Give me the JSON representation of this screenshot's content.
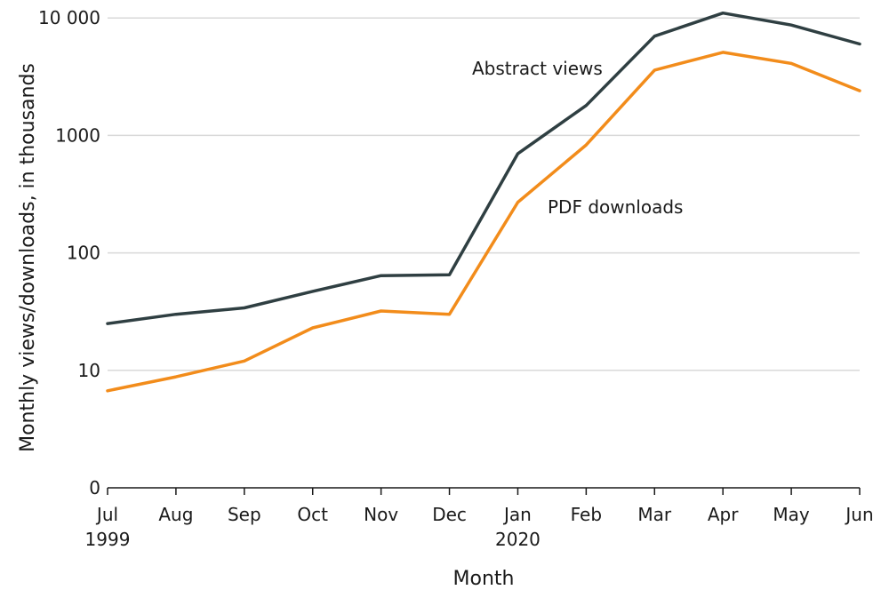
{
  "chart_data": {
    "type": "line",
    "xlabel": "Month",
    "ylabel": "Monthly views/downloads, in thousands",
    "y_scale": "log",
    "grid": true,
    "legend": "inline labels",
    "categories": [
      "Jul",
      "Aug",
      "Sep",
      "Oct",
      "Nov",
      "Dec",
      "Jan",
      "Feb",
      "Mar",
      "Apr",
      "May",
      "Jun"
    ],
    "year_labels": [
      "1999",
      "",
      "",
      "",
      "",
      "",
      "2020",
      "",
      "",
      "",
      "",
      ""
    ],
    "y_ticks": [
      0,
      10,
      100,
      1000,
      10000
    ],
    "y_tick_labels": [
      "0",
      "10",
      "100",
      "1000",
      "10 000"
    ],
    "series": [
      {
        "name": "Abstract views",
        "color": "#2f3f42",
        "values": [
          25,
          30,
          34,
          47,
          64,
          65,
          700,
          1800,
          7000,
          11000,
          8700,
          6000
        ]
      },
      {
        "name": "PDF downloads",
        "color": "#f28c1b",
        "values": [
          6.7,
          8.8,
          12,
          23,
          32,
          30,
          270,
          830,
          3600,
          5100,
          4100,
          2400
        ]
      }
    ],
    "colors": {
      "grid": "#d9d9d9",
      "axis": "#1a1a1a"
    }
  }
}
